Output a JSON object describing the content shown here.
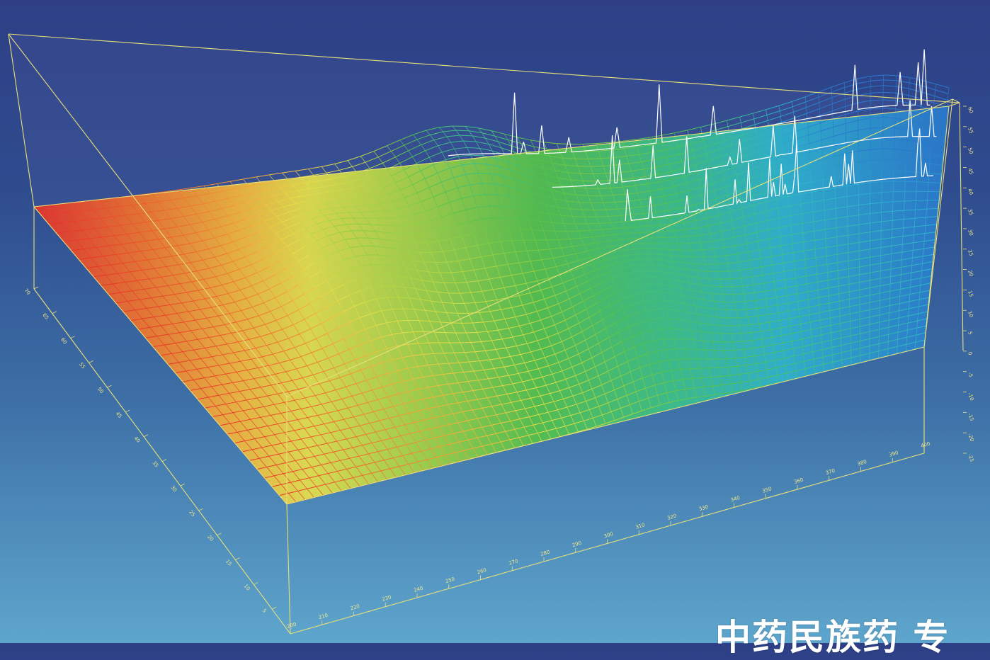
{
  "caption": "中药民族药 专",
  "colors": {
    "frame": "#e8e07a",
    "spectrum_trace": "#ffffff",
    "surface_low": "#2d6fc4",
    "surface_high": "#e8302a"
  },
  "chart_data": {
    "type": "surface3d",
    "title": "",
    "x_axis": {
      "label": "",
      "ticks": [
        200,
        210,
        220,
        230,
        240,
        250,
        260,
        270,
        280,
        290,
        300,
        310,
        320,
        330,
        340,
        350,
        360,
        370,
        380,
        390,
        400
      ]
    },
    "y_axis": {
      "label": "",
      "ticks": [
        5,
        10,
        15,
        20,
        25,
        30,
        35,
        40,
        45,
        50,
        55,
        60,
        65,
        70
      ]
    },
    "z_axis": {
      "label": "",
      "ticks": [
        -25,
        -20,
        -15,
        -10,
        -5,
        0,
        5,
        10,
        15,
        20,
        25,
        30,
        35,
        40,
        45,
        50,
        55,
        60
      ]
    },
    "surface_peaks": [
      {
        "x": 290,
        "y": 62,
        "height": 30
      },
      {
        "x": 255,
        "y": 45,
        "height": 22
      },
      {
        "x": 320,
        "y": 25,
        "height": 15
      },
      {
        "x": 360,
        "y": 58,
        "height": 12
      },
      {
        "x": 385,
        "y": 66,
        "height": 28
      }
    ],
    "grid": true,
    "legend": "none"
  }
}
